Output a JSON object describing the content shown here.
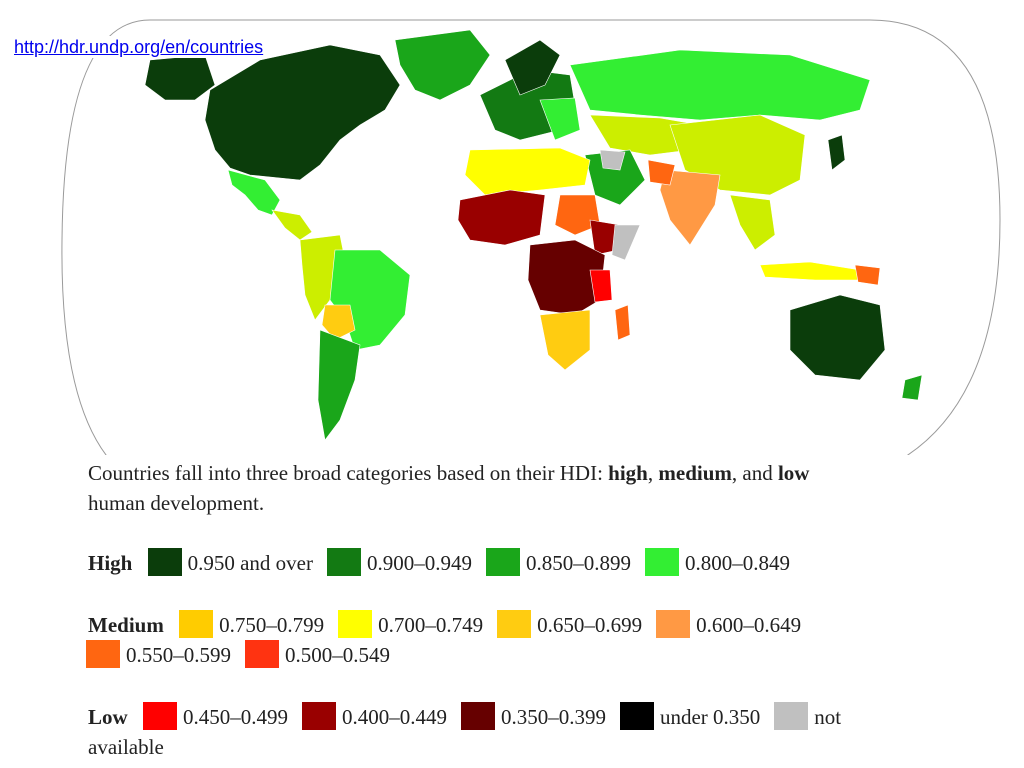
{
  "url": "http://hdr.undp.org/en/countries",
  "caption": {
    "text1": "Countries fall into three broad categories based on their HDI: ",
    "high": "high",
    "sep1": ", ",
    "medium": "medium",
    "sep2": ", and ",
    "low": "low",
    "text2": "human development."
  },
  "legend": {
    "high": {
      "label": "High",
      "items": [
        {
          "label": "0.950 and over",
          "color": "#0b3d0b"
        },
        {
          "label": "0.900–0.949",
          "color": "#137a13"
        },
        {
          "label": "0.850–0.899",
          "color": "#1aa61a"
        },
        {
          "label": "0.800–0.849",
          "color": "#33ee33"
        }
      ]
    },
    "medium": {
      "label": "Medium",
      "items": [
        {
          "label": "0.750–0.799",
          "color": "#ffcc00"
        },
        {
          "label": "0.700–0.749",
          "color": "#ffff00"
        },
        {
          "label": "0.650–0.699",
          "color": "#ffcc11"
        },
        {
          "label": "0.600–0.649",
          "color": "#ff9944"
        },
        {
          "label": "0.550–0.599",
          "color": "#ff6611"
        },
        {
          "label": "0.500–0.549",
          "color": "#ff3311"
        }
      ]
    },
    "low": {
      "label": "Low",
      "items": [
        {
          "label": "0.450–0.499",
          "color": "#ff0000"
        },
        {
          "label": "0.400–0.449",
          "color": "#990000"
        },
        {
          "label": "0.350–0.399",
          "color": "#660000"
        },
        {
          "label": "under 0.350",
          "color": "#000000"
        },
        {
          "label": "not available",
          "color": "#c0c0c0"
        }
      ]
    }
  }
}
